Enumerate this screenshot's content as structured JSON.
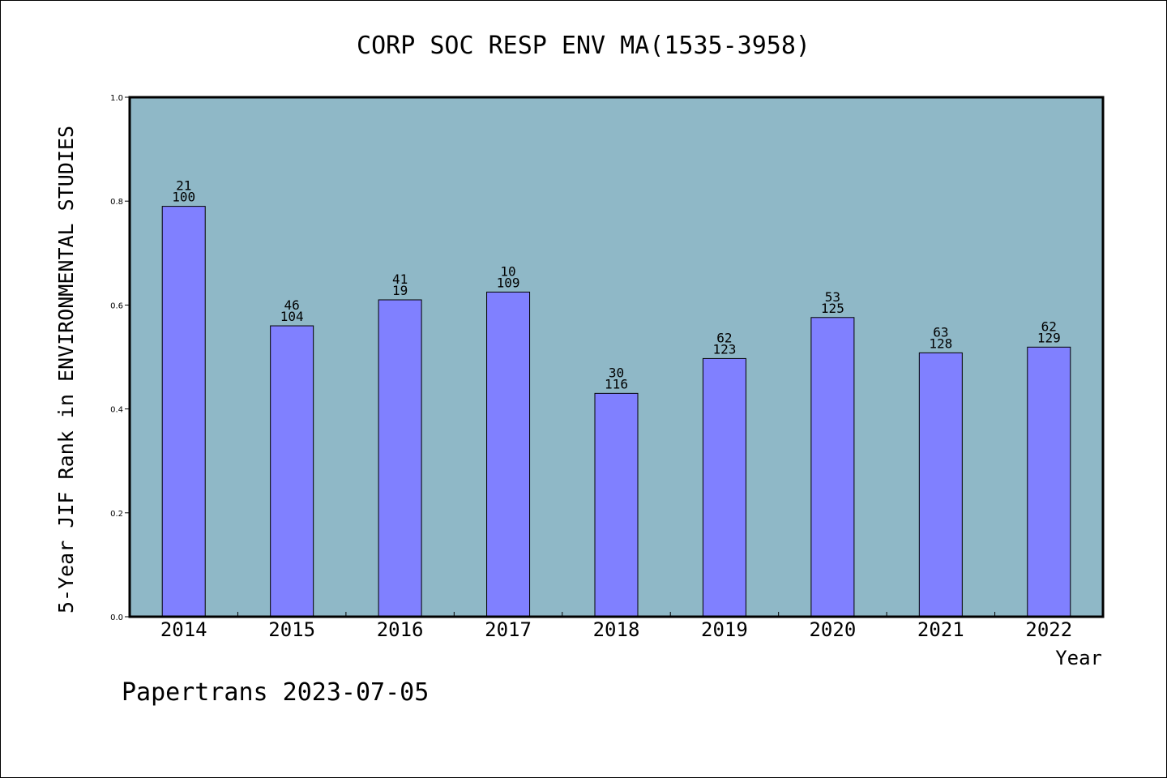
{
  "chart_data": {
    "type": "bar",
    "title": "CORP SOC RESP ENV MA(1535-3958)",
    "ylabel": "5-Year JIF Rank in ENVIRONMENTAL STUDIES",
    "xlabel": "Year",
    "ylim": [
      0,
      1.0
    ],
    "yticks": [
      "0.0",
      "0.2",
      "0.4",
      "0.6",
      "0.8",
      "1.0"
    ],
    "categories": [
      "2014",
      "2015",
      "2016",
      "2017",
      "2018",
      "2019",
      "2020",
      "2021",
      "2022"
    ],
    "values": [
      0.79,
      0.56,
      0.61,
      0.625,
      0.43,
      0.497,
      0.576,
      0.508,
      0.519
    ],
    "labels_top": [
      "21",
      "46",
      "41",
      "10",
      "30",
      "62",
      "53",
      "63",
      "62"
    ],
    "labels_bottom": [
      "100",
      "104",
      "19",
      "109",
      "116",
      "123",
      "125",
      "128",
      "129"
    ],
    "grid": false,
    "colors": {
      "plot_bg": "#8fb8c7",
      "bar": "#8080ff",
      "bar_edge": "#000000"
    }
  },
  "footer": {
    "text": "Papertrans 2023-07-05"
  }
}
